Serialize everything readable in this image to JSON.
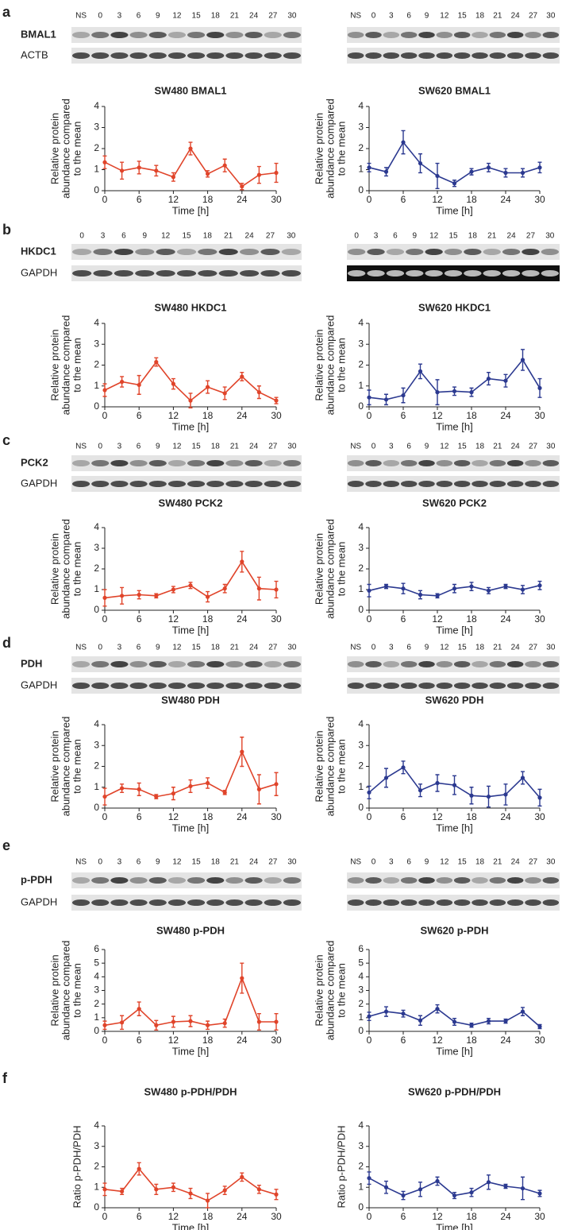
{
  "figure": {
    "panels": [
      {
        "letter": "a",
        "blot_rows": [
          "BMAL1",
          "ACTB"
        ],
        "left_lanes": [
          "NS",
          "0",
          "3",
          "6",
          "9",
          "12",
          "15",
          "18",
          "21",
          "24",
          "27",
          "30"
        ],
        "right_lanes": [
          "NS",
          "0",
          "3",
          "6",
          "9",
          "12",
          "15",
          "18",
          "21",
          "24",
          "27",
          "30"
        ]
      },
      {
        "letter": "b",
        "blot_rows": [
          "HKDC1",
          "GAPDH"
        ],
        "left_lanes": [
          "0",
          "3",
          "6",
          "9",
          "12",
          "15",
          "18",
          "21",
          "24",
          "27",
          "30"
        ],
        "right_lanes": [
          "0",
          "3",
          "6",
          "9",
          "12",
          "15",
          "18",
          "21",
          "24",
          "27",
          "30"
        ]
      },
      {
        "letter": "c",
        "blot_rows": [
          "PCK2",
          "GAPDH"
        ],
        "left_lanes": [
          "NS",
          "0",
          "3",
          "6",
          "9",
          "12",
          "15",
          "18",
          "21",
          "24",
          "27",
          "30"
        ],
        "right_lanes": [
          "NS",
          "0",
          "3",
          "6",
          "9",
          "12",
          "15",
          "18",
          "21",
          "24",
          "27",
          "30"
        ]
      },
      {
        "letter": "d",
        "blot_rows": [
          "PDH",
          "GAPDH"
        ],
        "left_lanes": [
          "NS",
          "0",
          "3",
          "6",
          "9",
          "12",
          "15",
          "18",
          "21",
          "24",
          "27",
          "30"
        ],
        "right_lanes": [
          "NS",
          "0",
          "3",
          "6",
          "9",
          "12",
          "15",
          "18",
          "21",
          "24",
          "27",
          "30"
        ]
      },
      {
        "letter": "e",
        "blot_rows": [
          "p-PDH",
          "GAPDH"
        ],
        "left_lanes": [
          "NS",
          "0",
          "3",
          "6",
          "9",
          "12",
          "15",
          "18",
          "21",
          "24",
          "27",
          "30"
        ],
        "right_lanes": [
          "NS",
          "0",
          "3",
          "6",
          "9",
          "12",
          "15",
          "18",
          "21",
          "24",
          "27",
          "30"
        ]
      },
      {
        "letter": "f"
      }
    ]
  },
  "chart_data": [
    {
      "type": "line",
      "title": "SW480 BMAL1",
      "xlabel": "Time [h]",
      "ylabel": [
        "Relative protein",
        "abundance compared",
        "to the mean"
      ],
      "color": "#e0442a",
      "x": [
        0,
        3,
        6,
        9,
        12,
        15,
        18,
        21,
        24,
        27,
        30
      ],
      "values": [
        1.35,
        0.95,
        1.1,
        0.95,
        0.65,
        2.0,
        0.8,
        1.2,
        0.2,
        0.75,
        0.85
      ],
      "errors": [
        0.3,
        0.4,
        0.3,
        0.25,
        0.2,
        0.3,
        0.15,
        0.3,
        0.15,
        0.4,
        0.45
      ],
      "xlim": [
        0,
        30
      ],
      "xticks": [
        0,
        6,
        12,
        18,
        24,
        30
      ],
      "ylim": [
        0,
        4
      ],
      "yticks": [
        0,
        1,
        2,
        3,
        4
      ]
    },
    {
      "type": "line",
      "title": "SW620 BMAL1",
      "xlabel": "Time [h]",
      "ylabel": [
        "Relative protein",
        "abundance compared",
        "to the mean"
      ],
      "color": "#2b3990",
      "x": [
        0,
        3,
        6,
        9,
        12,
        15,
        18,
        21,
        24,
        27,
        30
      ],
      "values": [
        1.1,
        0.9,
        2.3,
        1.3,
        0.7,
        0.35,
        0.9,
        1.1,
        0.85,
        0.85,
        1.1
      ],
      "errors": [
        0.2,
        0.2,
        0.55,
        0.45,
        0.6,
        0.15,
        0.15,
        0.2,
        0.2,
        0.2,
        0.25
      ],
      "xlim": [
        0,
        30
      ],
      "xticks": [
        0,
        6,
        12,
        18,
        24,
        30
      ],
      "ylim": [
        0,
        4
      ],
      "yticks": [
        0,
        1,
        2,
        3,
        4
      ]
    },
    {
      "type": "line",
      "title": "SW480 HKDC1",
      "xlabel": "Time [h]",
      "ylabel": [
        "Relative protein",
        "abundance compared",
        "to the mean"
      ],
      "color": "#e0442a",
      "x": [
        0,
        3,
        6,
        9,
        12,
        15,
        18,
        21,
        24,
        27,
        30
      ],
      "values": [
        0.8,
        1.2,
        1.05,
        2.15,
        1.1,
        0.3,
        0.95,
        0.65,
        1.45,
        0.7,
        0.3
      ],
      "errors": [
        0.3,
        0.25,
        0.45,
        0.2,
        0.25,
        0.35,
        0.3,
        0.3,
        0.2,
        0.3,
        0.15
      ],
      "xlim": [
        0,
        30
      ],
      "xticks": [
        0,
        6,
        12,
        18,
        24,
        30
      ],
      "ylim": [
        0,
        4
      ],
      "yticks": [
        0,
        1,
        2,
        3,
        4
      ]
    },
    {
      "type": "line",
      "title": "SW620 HKDC1",
      "xlabel": "Time [h]",
      "ylabel": [
        "Relative protein",
        "abundance compared",
        "to the mean"
      ],
      "color": "#2b3990",
      "x": [
        0,
        3,
        6,
        9,
        12,
        15,
        18,
        21,
        24,
        27,
        30
      ],
      "values": [
        0.45,
        0.35,
        0.55,
        1.7,
        0.7,
        0.75,
        0.7,
        1.35,
        1.25,
        2.25,
        0.9
      ],
      "errors": [
        0.35,
        0.25,
        0.35,
        0.35,
        0.6,
        0.2,
        0.2,
        0.3,
        0.3,
        0.5,
        0.45
      ],
      "xlim": [
        0,
        30
      ],
      "xticks": [
        0,
        6,
        12,
        18,
        24,
        30
      ],
      "ylim": [
        0,
        4
      ],
      "yticks": [
        0,
        1,
        2,
        3,
        4
      ]
    },
    {
      "type": "line",
      "title": "SW480 PCK2",
      "xlabel": "Time [h]",
      "ylabel": [
        "Relative protein",
        "abundance compared",
        "to the mean"
      ],
      "color": "#e0442a",
      "x": [
        0,
        3,
        6,
        9,
        12,
        15,
        18,
        21,
        24,
        27,
        30
      ],
      "values": [
        0.6,
        0.7,
        0.75,
        0.7,
        1.0,
        1.2,
        0.65,
        1.05,
        2.35,
        1.05,
        1.0
      ],
      "errors": [
        0.4,
        0.4,
        0.2,
        0.1,
        0.15,
        0.15,
        0.25,
        0.2,
        0.5,
        0.55,
        0.4
      ],
      "xlim": [
        0,
        30
      ],
      "xticks": [
        0,
        6,
        12,
        18,
        24,
        30
      ],
      "ylim": [
        0,
        4
      ],
      "yticks": [
        0,
        1,
        2,
        3,
        4
      ]
    },
    {
      "type": "line",
      "title": "SW620 PCK2",
      "xlabel": "Time [h]",
      "ylabel": [
        "Relative protein",
        "abundance compared",
        "to the mean"
      ],
      "color": "#2b3990",
      "x": [
        0,
        3,
        6,
        9,
        12,
        15,
        18,
        21,
        24,
        27,
        30
      ],
      "values": [
        0.95,
        1.15,
        1.05,
        0.75,
        0.7,
        1.05,
        1.15,
        0.95,
        1.15,
        1.0,
        1.2
      ],
      "errors": [
        0.3,
        0.1,
        0.25,
        0.2,
        0.1,
        0.2,
        0.2,
        0.15,
        0.1,
        0.2,
        0.2
      ],
      "xlim": [
        0,
        30
      ],
      "xticks": [
        0,
        6,
        12,
        18,
        24,
        30
      ],
      "ylim": [
        0,
        4
      ],
      "yticks": [
        0,
        1,
        2,
        3,
        4
      ]
    },
    {
      "type": "line",
      "title": "SW480 PDH",
      "xlabel": "Time [h]",
      "ylabel": [
        "Relative protein",
        "abundance compared",
        "to the mean"
      ],
      "color": "#e0442a",
      "x": [
        0,
        3,
        6,
        9,
        12,
        15,
        18,
        21,
        24,
        27,
        30
      ],
      "values": [
        0.55,
        0.95,
        0.9,
        0.55,
        0.7,
        1.05,
        1.2,
        0.75,
        2.7,
        0.9,
        1.15
      ],
      "errors": [
        0.4,
        0.2,
        0.3,
        0.1,
        0.3,
        0.3,
        0.25,
        0.1,
        0.7,
        0.7,
        0.55
      ],
      "xlim": [
        0,
        30
      ],
      "xticks": [
        0,
        6,
        12,
        18,
        24,
        30
      ],
      "ylim": [
        0,
        4
      ],
      "yticks": [
        0,
        1,
        2,
        3,
        4
      ]
    },
    {
      "type": "line",
      "title": "SW620 PDH",
      "xlabel": "Time [h]",
      "ylabel": [
        "Relative protein",
        "abundance compared",
        "to the mean"
      ],
      "color": "#2b3990",
      "x": [
        0,
        3,
        6,
        9,
        12,
        15,
        18,
        21,
        24,
        27,
        30
      ],
      "values": [
        0.75,
        1.45,
        1.95,
        0.85,
        1.2,
        1.1,
        0.6,
        0.55,
        0.65,
        1.45,
        0.5
      ],
      "errors": [
        0.3,
        0.45,
        0.3,
        0.3,
        0.4,
        0.45,
        0.4,
        0.5,
        0.5,
        0.3,
        0.4
      ],
      "xlim": [
        0,
        30
      ],
      "xticks": [
        0,
        6,
        12,
        18,
        24,
        30
      ],
      "ylim": [
        0,
        4
      ],
      "yticks": [
        0,
        1,
        2,
        3,
        4
      ]
    },
    {
      "type": "line",
      "title": "SW480 p-PDH",
      "xlabel": "Time [h]",
      "ylabel": [
        "Relative protein",
        "abundance compared",
        "to the mean"
      ],
      "color": "#e0442a",
      "x": [
        0,
        3,
        6,
        9,
        12,
        15,
        18,
        21,
        24,
        27,
        30
      ],
      "values": [
        0.45,
        0.65,
        1.65,
        0.45,
        0.7,
        0.75,
        0.45,
        0.6,
        3.9,
        0.7,
        0.7
      ],
      "errors": [
        0.3,
        0.5,
        0.5,
        0.35,
        0.4,
        0.4,
        0.3,
        0.3,
        1.1,
        0.6,
        0.6
      ],
      "xlim": [
        0,
        30
      ],
      "xticks": [
        0,
        6,
        12,
        18,
        24,
        30
      ],
      "ylim": [
        0,
        6
      ],
      "yticks": [
        0,
        1,
        2,
        3,
        4,
        5,
        6
      ]
    },
    {
      "type": "line",
      "title": "SW620 p-PDH",
      "xlabel": "Time [h]",
      "ylabel": [
        "Relative protein",
        "abundance compared",
        "to the mean"
      ],
      "color": "#2b3990",
      "x": [
        0,
        3,
        6,
        9,
        12,
        15,
        18,
        21,
        24,
        27,
        30
      ],
      "values": [
        1.1,
        1.45,
        1.3,
        0.8,
        1.65,
        0.7,
        0.45,
        0.75,
        0.75,
        1.45,
        0.35
      ],
      "errors": [
        0.3,
        0.35,
        0.25,
        0.35,
        0.3,
        0.25,
        0.15,
        0.2,
        0.15,
        0.3,
        0.15
      ],
      "xlim": [
        0,
        30
      ],
      "xticks": [
        0,
        6,
        12,
        18,
        24,
        30
      ],
      "ylim": [
        0,
        6
      ],
      "yticks": [
        0,
        1,
        2,
        3,
        4,
        5,
        6
      ]
    },
    {
      "type": "line",
      "title": "SW480 p-PDH/PDH",
      "xlabel": "Time [h]",
      "ylabel": [
        "Ratio p-PDH/PDH"
      ],
      "color": "#e0442a",
      "x": [
        0,
        3,
        6,
        9,
        12,
        15,
        18,
        21,
        24,
        27,
        30
      ],
      "values": [
        0.9,
        0.8,
        1.9,
        0.9,
        1.0,
        0.7,
        0.35,
        0.85,
        1.5,
        0.9,
        0.65
      ],
      "errors": [
        0.3,
        0.15,
        0.3,
        0.25,
        0.2,
        0.25,
        0.35,
        0.2,
        0.2,
        0.2,
        0.25
      ],
      "xlim": [
        0,
        30
      ],
      "xticks": [
        0,
        6,
        12,
        18,
        24,
        30
      ],
      "ylim": [
        0,
        4
      ],
      "yticks": [
        0,
        1,
        2,
        3,
        4
      ]
    },
    {
      "type": "line",
      "title": "SW620 p-PDH/PDH",
      "xlabel": "Time [h]",
      "ylabel": [
        "Ratio p-PDH/PDH"
      ],
      "color": "#2b3990",
      "x": [
        0,
        3,
        6,
        9,
        12,
        15,
        18,
        21,
        24,
        27,
        30
      ],
      "values": [
        1.45,
        1.0,
        0.6,
        0.9,
        1.3,
        0.6,
        0.75,
        1.25,
        1.05,
        0.95,
        0.7
      ],
      "errors": [
        0.3,
        0.3,
        0.2,
        0.35,
        0.2,
        0.15,
        0.2,
        0.35,
        0.1,
        0.55,
        0.15
      ],
      "xlim": [
        0,
        30
      ],
      "xticks": [
        0,
        6,
        12,
        18,
        24,
        30
      ],
      "ylim": [
        0,
        4
      ],
      "yticks": [
        0,
        1,
        2,
        3,
        4
      ]
    }
  ]
}
